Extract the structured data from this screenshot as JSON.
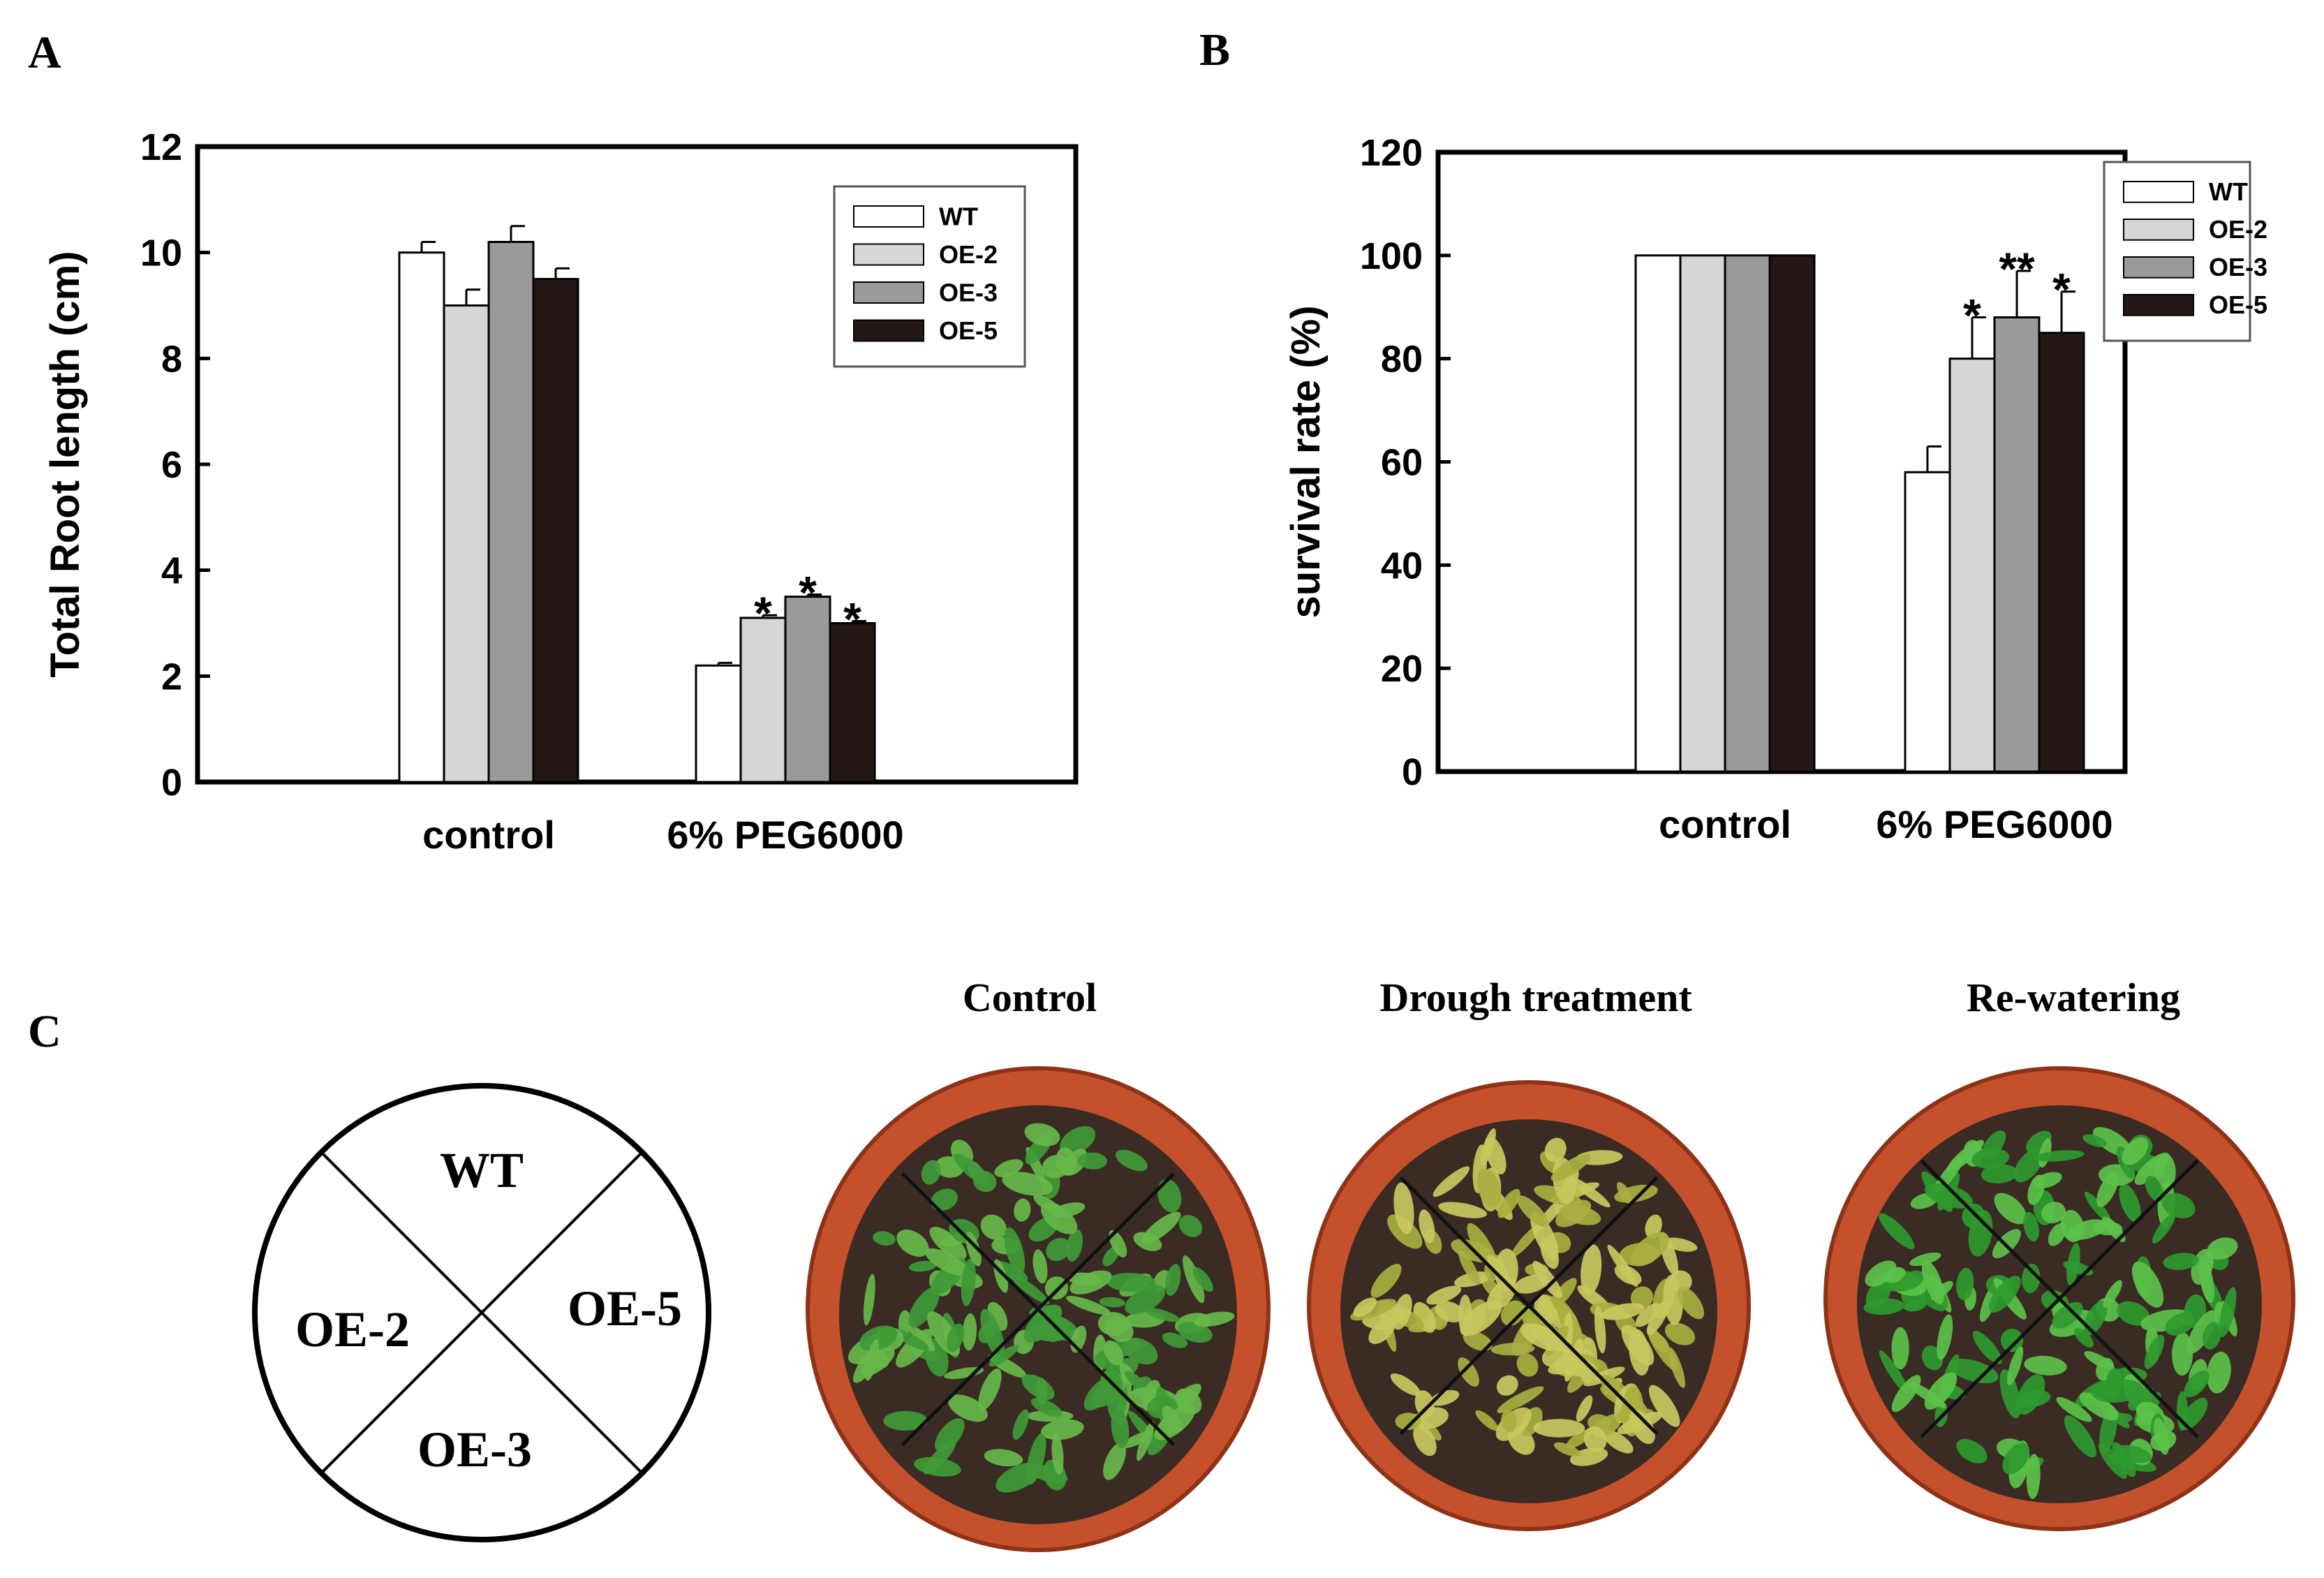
{
  "panels": {
    "a": "A",
    "b": "B",
    "c": "C"
  },
  "chart_data": [
    {
      "type": "bar",
      "panel": "A",
      "title": "",
      "xlabel": "",
      "ylabel": "Total Root length (cm)",
      "ylim": [
        0,
        12
      ],
      "yticks": [
        "0",
        "2",
        "4",
        "6",
        "8",
        "10",
        "12"
      ],
      "categories": [
        "control",
        "6% PEG6000"
      ],
      "series": [
        {
          "name": "WT",
          "color": "#ffffff",
          "values": [
            10.0,
            2.2
          ],
          "errors": [
            0.2,
            0.05
          ],
          "marks": [
            "",
            ""
          ]
        },
        {
          "name": "OE-2",
          "color": "#d6d6d6",
          "values": [
            9.0,
            3.1
          ],
          "errors": [
            0.3,
            0.05
          ],
          "marks": [
            "",
            "*"
          ]
        },
        {
          "name": "OE-3",
          "color": "#9a9a9a",
          "values": [
            10.2,
            3.5
          ],
          "errors": [
            0.3,
            0.04
          ],
          "marks": [
            "",
            "*"
          ]
        },
        {
          "name": "OE-5",
          "color": "#231815",
          "values": [
            9.5,
            3.0
          ],
          "errors": [
            0.2,
            0.04
          ],
          "marks": [
            "",
            "*"
          ]
        }
      ],
      "legend": "top-right",
      "grid": false
    },
    {
      "type": "bar",
      "panel": "B",
      "title": "",
      "xlabel": "",
      "ylabel": "survival rate (%)",
      "ylim": [
        0,
        120
      ],
      "yticks": [
        "0",
        "20",
        "40",
        "60",
        "80",
        "100",
        "120"
      ],
      "categories": [
        "control",
        "6% PEG6000"
      ],
      "series": [
        {
          "name": "WT",
          "color": "#ffffff",
          "values": [
            100,
            58
          ],
          "errors": [
            0,
            5
          ],
          "marks": [
            "",
            ""
          ]
        },
        {
          "name": "OE-2",
          "color": "#d6d6d6",
          "values": [
            100,
            80
          ],
          "errors": [
            0,
            8
          ],
          "marks": [
            "",
            "*"
          ]
        },
        {
          "name": "OE-3",
          "color": "#9a9a9a",
          "values": [
            100,
            88
          ],
          "errors": [
            0,
            9
          ],
          "marks": [
            "",
            "**"
          ]
        },
        {
          "name": "OE-5",
          "color": "#231815",
          "values": [
            100,
            85
          ],
          "errors": [
            0,
            8
          ],
          "marks": [
            "",
            "*"
          ]
        }
      ],
      "legend": "top-right",
      "grid": false
    }
  ],
  "panel_c": {
    "diagram": {
      "top": "WT",
      "left": "OE-2",
      "right": "OE-5",
      "bottom": "OE-3"
    },
    "photos": [
      {
        "title": "Control",
        "plant_color": "#3f9a36",
        "plant_color2": "#67b84a"
      },
      {
        "title": "Drough treatment",
        "plant_color": "#a8b040",
        "plant_color2": "#c9c860"
      },
      {
        "title": "Re-watering",
        "plant_color": "#2f9a2f",
        "plant_color2": "#5cc24a"
      }
    ],
    "pot_color": "#c4502c",
    "soil_color": "#3a2c24"
  }
}
